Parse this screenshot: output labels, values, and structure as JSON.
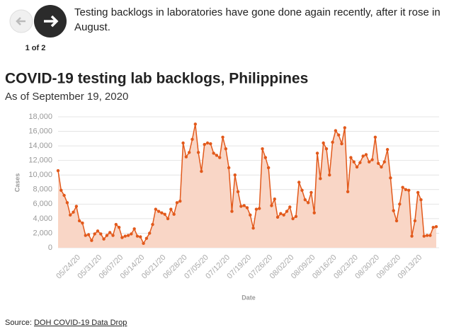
{
  "caption": "Testing backlogs in laboratories have gone done again recently, after it rose in August.",
  "pager": "1 of 2",
  "source": {
    "label": "Source:",
    "link": "DOH COVID-19 Data Drop"
  },
  "chart_data": {
    "type": "line",
    "title": "COVID-19 testing lab backlogs, Philippines",
    "subtitle": "As of September 19, 2020",
    "xlabel": "Date",
    "ylabel": "Cases",
    "x": [
      "05/18/20",
      "05/19/20",
      "05/20/20",
      "05/21/20",
      "05/22/20",
      "05/23/20",
      "05/24/20",
      "05/25/20",
      "05/26/20",
      "05/27/20",
      "05/28/20",
      "05/29/20",
      "05/30/20",
      "05/31/20",
      "06/01/20",
      "06/02/20",
      "06/03/20",
      "06/04/20",
      "06/05/20",
      "06/06/20",
      "06/07/20",
      "06/08/20",
      "06/09/20",
      "06/10/20",
      "06/11/20",
      "06/12/20",
      "06/13/20",
      "06/14/20",
      "06/15/20",
      "06/16/20",
      "06/17/20",
      "06/18/20",
      "06/19/20",
      "06/20/20",
      "06/21/20",
      "06/22/20",
      "06/23/20",
      "06/24/20",
      "06/25/20",
      "06/26/20",
      "06/27/20",
      "06/28/20",
      "06/29/20",
      "06/30/20",
      "07/01/20",
      "07/02/20",
      "07/03/20",
      "07/04/20",
      "07/05/20",
      "07/06/20",
      "07/07/20",
      "07/08/20",
      "07/09/20",
      "07/10/20",
      "07/11/20",
      "07/12/20",
      "07/13/20",
      "07/14/20",
      "07/15/20",
      "07/16/20",
      "07/17/20",
      "07/18/20",
      "07/19/20",
      "07/20/20",
      "07/21/20",
      "07/22/20",
      "07/23/20",
      "07/24/20",
      "07/25/20",
      "07/26/20",
      "07/27/20",
      "07/28/20",
      "07/29/20",
      "07/30/20",
      "07/31/20",
      "08/01/20",
      "08/02/20",
      "08/03/20",
      "08/04/20",
      "08/05/20",
      "08/06/20",
      "08/07/20",
      "08/08/20",
      "08/09/20",
      "08/10/20",
      "08/11/20",
      "08/12/20",
      "08/13/20",
      "08/14/20",
      "08/15/20",
      "08/16/20",
      "08/17/20",
      "08/18/20",
      "08/19/20",
      "08/20/20",
      "08/21/20",
      "08/22/20",
      "08/23/20",
      "08/24/20",
      "08/25/20",
      "08/26/20",
      "08/27/20",
      "08/28/20",
      "08/29/20",
      "08/30/20",
      "08/31/20",
      "09/01/20",
      "09/02/20",
      "09/03/20",
      "09/04/20",
      "09/05/20",
      "09/06/20",
      "09/07/20",
      "09/08/20",
      "09/09/20",
      "09/10/20",
      "09/11/20",
      "09/12/20",
      "09/13/20",
      "09/14/20",
      "09/15/20",
      "09/16/20",
      "09/17/20",
      "09/18/20",
      "09/19/20"
    ],
    "series": [
      {
        "name": "Cases",
        "color": "#e2591b",
        "fill": "#f9d6c6",
        "values": [
          10600,
          7900,
          7200,
          6200,
          4500,
          4900,
          5700,
          3700,
          3400,
          1700,
          1800,
          1000,
          1900,
          2300,
          1900,
          1200,
          1700,
          2100,
          1700,
          3200,
          2800,
          1400,
          1600,
          1700,
          1900,
          2600,
          1600,
          1500,
          600,
          1300,
          2000,
          3200,
          5300,
          5000,
          4800,
          4600,
          4000,
          5300,
          4600,
          6200,
          6400,
          14400,
          12500,
          13100,
          14900,
          17000,
          13100,
          10500,
          14200,
          14400,
          14300,
          13000,
          12700,
          12400,
          15200,
          13600,
          11000,
          5000,
          10000,
          7700,
          5700,
          5800,
          5500,
          4500,
          2700,
          5300,
          5400,
          13600,
          12400,
          11000,
          5800,
          6700,
          4200,
          4700,
          4500,
          5000,
          5600,
          4000,
          4300,
          9000,
          7900,
          6600,
          6200,
          7600,
          4800,
          13000,
          9500,
          14400,
          13600,
          10000,
          14500,
          16100,
          15500,
          14300,
          16500,
          7700,
          12400,
          11800,
          11100,
          11700,
          12600,
          12800,
          11800,
          12100,
          15200,
          11600,
          11100,
          11800,
          13500,
          9600,
          5100,
          3700,
          6000,
          8300,
          8000,
          7900,
          1600,
          3700,
          7600,
          6600,
          1600,
          1700,
          1700,
          2800,
          2900
        ]
      }
    ],
    "xticks": [
      "05/24/20",
      "05/31/20",
      "06/07/20",
      "06/14/20",
      "06/21/20",
      "06/28/20",
      "07/05/20",
      "07/12/20",
      "07/19/20",
      "07/26/20",
      "08/02/20",
      "08/09/20",
      "08/16/20",
      "08/23/20",
      "08/30/20",
      "09/06/20",
      "09/13/20"
    ],
    "ylim": [
      0,
      18000
    ],
    "yticks": [
      0,
      {
        "value": 2000,
        "label": "2,000"
      },
      {
        "value": 4000,
        "label": "4,000"
      },
      {
        "value": 6000,
        "label": "6,000"
      },
      {
        "value": 8000,
        "label": "8,000"
      },
      {
        "value": 10000,
        "label": "10,000"
      },
      {
        "value": 12000,
        "label": "12,000"
      },
      {
        "value": 14000,
        "label": "14,000"
      },
      {
        "value": 16000,
        "label": "16,000"
      },
      {
        "value": 18000,
        "label": "18,000"
      }
    ],
    "grid": true
  }
}
